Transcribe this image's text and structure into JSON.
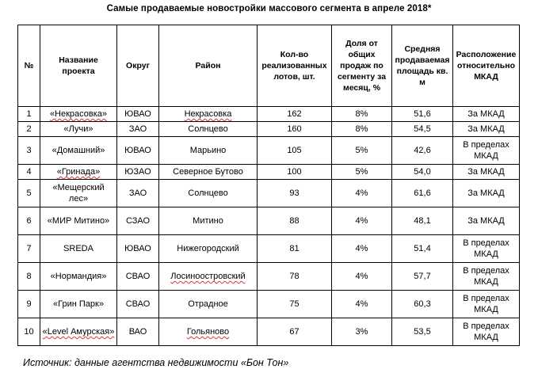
{
  "title": "Самые продаваемые  новостройки  массового  сегмента в апреле 2018*",
  "headers": {
    "num": "№",
    "project": "Название проекта",
    "okrug": "Округ",
    "district": "Район",
    "lots": "Кол-во реализованных лотов, шт.",
    "share": "Доля от общих продаж по сегменту за месяц, %",
    "area": "Средняя продаваемая площадь кв. м",
    "location": "Расположение относительно МКАД"
  },
  "rows": [
    {
      "num": "1",
      "project": "«Некрасовка»",
      "okrug": "ЮВАО",
      "district": "Некрасовка",
      "lots": "162",
      "share": "8%",
      "area": "51,6",
      "location": "За МКАД"
    },
    {
      "num": "2",
      "project": "«Лучи»",
      "okrug": "ЗАО",
      "district": "Солнцево",
      "lots": "160",
      "share": "8%",
      "area": "54,5",
      "location": "За МКАД"
    },
    {
      "num": "3",
      "project": "«Домашний»",
      "okrug": "ЮВАО",
      "district": "Марьино",
      "lots": "105",
      "share": "5%",
      "area": "42,6",
      "location": "В пределах МКАД"
    },
    {
      "num": "4",
      "project": "«Гринада»",
      "okrug": "ЮЗАО",
      "district": "Северное Бутово",
      "lots": "100",
      "share": "5%",
      "area": "54,0",
      "location": "За МКАД"
    },
    {
      "num": "5",
      "project": "«Мещерский лес»",
      "okrug": "ЗАО",
      "district": "Солнцево",
      "lots": "93",
      "share": "4%",
      "area": "61,6",
      "location": "За МКАД"
    },
    {
      "num": "6",
      "project": "«МИР Митино»",
      "okrug": "СЗАО",
      "district": "Митино",
      "lots": "88",
      "share": "4%",
      "area": "48,1",
      "location": "За МКАД"
    },
    {
      "num": "7",
      "project": "SREDA",
      "okrug": "ЮВАО",
      "district": "Нижегородский",
      "lots": "81",
      "share": "4%",
      "area": "51,4",
      "location": "В пределах МКАД"
    },
    {
      "num": "8",
      "project": "«Нормандия»",
      "okrug": "СВАО",
      "district": "Лосиноостровский",
      "lots": "78",
      "share": "4%",
      "area": "57,7",
      "location": "В пределах МКАД"
    },
    {
      "num": "9",
      "project": "«Грин Парк»",
      "okrug": "СВАО",
      "district": "Отрадное",
      "lots": "75",
      "share": "4%",
      "area": "60,3",
      "location": "В пределах МКАД"
    },
    {
      "num": "10",
      "project": "«Level Амурская»",
      "okrug": "ВАО",
      "district": "Гольяново",
      "lots": "67",
      "share": "3%",
      "area": "53,5",
      "location": "В пределах МКАД"
    }
  ],
  "source": "Источник: данные агентства недвижимости «Бон Тон»"
}
